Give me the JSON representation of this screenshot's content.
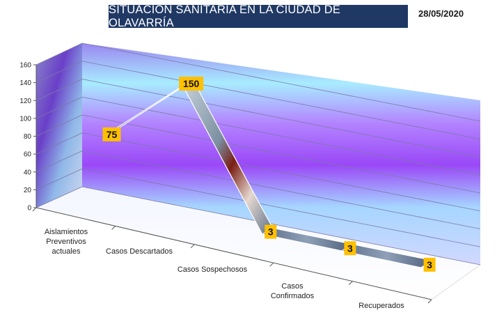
{
  "title": "SITUACIÓN SANITARIA EN LA CIUDAD DE OLAVARRÍA",
  "date": "28/05/2020",
  "colors": {
    "title_bg": "#1f3864",
    "label_bg": "#ffc000",
    "wall_purple": "#9a5cff",
    "wall_blue": "#8fd3ff"
  },
  "chart_data": {
    "type": "line",
    "style": "3d-ribbon",
    "categories": [
      [
        "Aislamientos",
        "Preventivos",
        "actuales"
      ],
      [
        "Casos Descartados"
      ],
      [
        "Casos Sospechosos"
      ],
      [
        "Casos",
        "Confirmados"
      ],
      [
        "Recuperados"
      ]
    ],
    "values": [
      75,
      150,
      3,
      3,
      3
    ],
    "ylim": [
      0,
      160
    ],
    "yticks": [
      0,
      20,
      40,
      60,
      80,
      100,
      120,
      140,
      160
    ],
    "grid": true,
    "legend": false,
    "data_labels": true
  }
}
